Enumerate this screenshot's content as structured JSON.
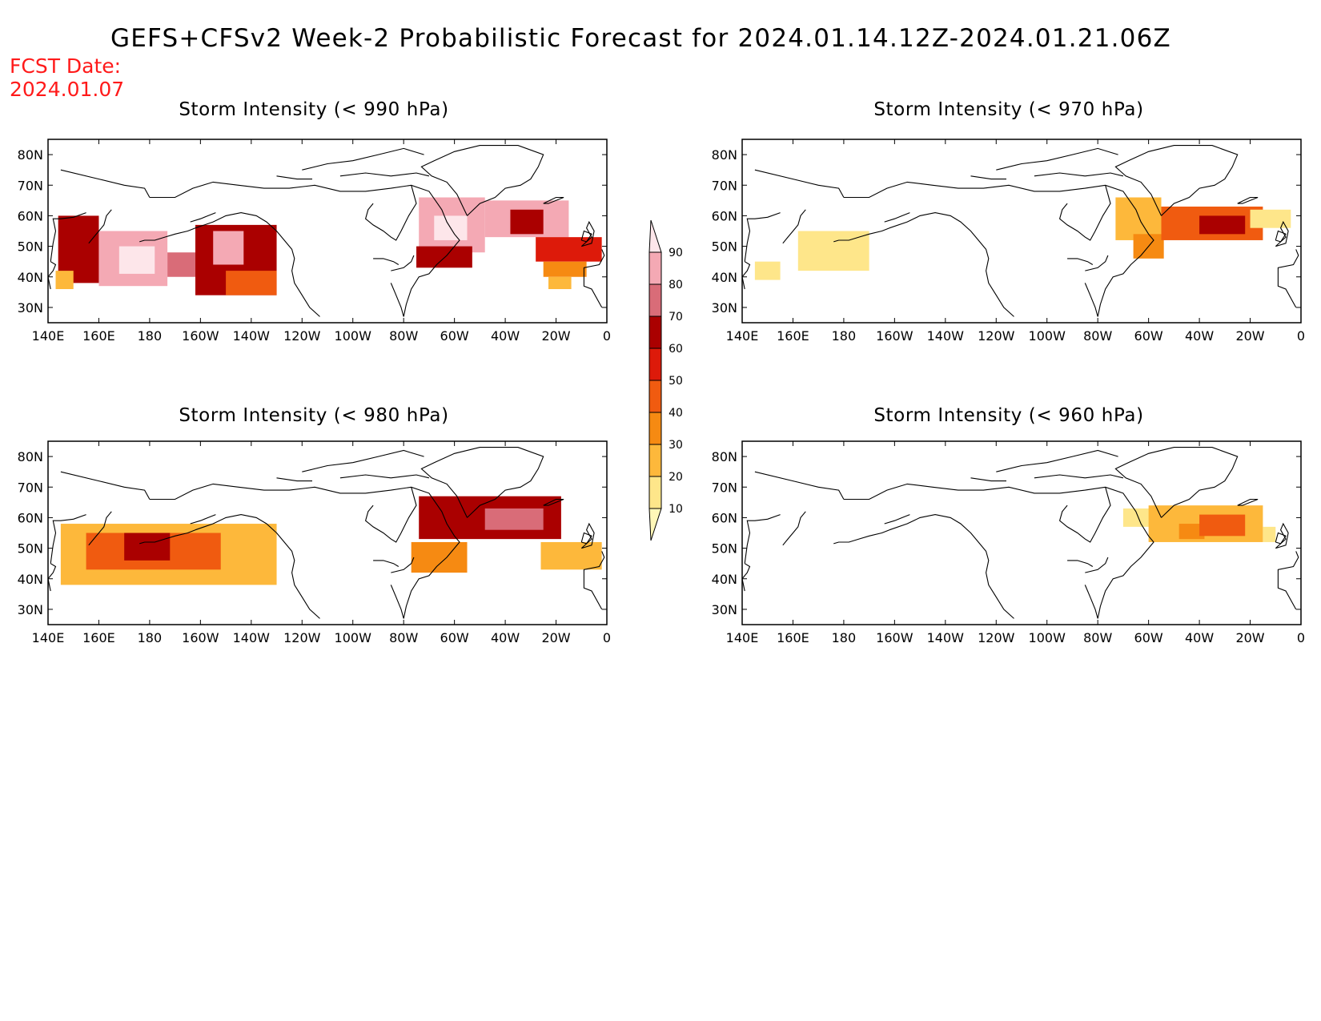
{
  "figure": {
    "title": "GEFS+CFSv2 Week-2 Probabilistic Forecast for 2024.01.14.12Z-2024.01.21.06Z",
    "fcst_label": "FCST Date:",
    "fcst_date": "2024.01.07"
  },
  "axes": {
    "x_tick_labels": [
      "140E",
      "160E",
      "180",
      "160W",
      "140W",
      "120W",
      "100W",
      "80W",
      "60W",
      "40W",
      "20W",
      "0"
    ],
    "x_tick_lons": [
      140,
      160,
      180,
      200,
      220,
      240,
      260,
      280,
      300,
      320,
      340,
      360
    ],
    "lon_range": [
      140,
      360
    ],
    "y_tick_labels": [
      "30N",
      "40N",
      "50N",
      "60N",
      "70N",
      "80N"
    ],
    "y_tick_lats": [
      30,
      40,
      50,
      60,
      70,
      80
    ],
    "lat_range": [
      25,
      85
    ]
  },
  "colorbar": {
    "levels": [
      10,
      20,
      30,
      40,
      50,
      60,
      70,
      80,
      90
    ],
    "colors": [
      "#fff7b8",
      "#fee68a",
      "#fdb83b",
      "#f68a12",
      "#f05b10",
      "#dd1a0a",
      "#aa0000",
      "#d96c78",
      "#f4a9b4",
      "#fde6ea"
    ]
  },
  "panels": [
    {
      "id": "990",
      "title": "Storm Intensity (< 990 hPa)",
      "regions": [
        {
          "lon": [
            144,
            160
          ],
          "lat": [
            38,
            60
          ],
          "value": 68
        },
        {
          "lon": [
            160,
            187
          ],
          "lat": [
            37,
            55
          ],
          "value": 82
        },
        {
          "lon": [
            168,
            182
          ],
          "lat": [
            41,
            50
          ],
          "value": 92
        },
        {
          "lon": [
            187,
            198
          ],
          "lat": [
            40,
            48
          ],
          "value": 72
        },
        {
          "lon": [
            198,
            230
          ],
          "lat": [
            34,
            57
          ],
          "value": 60
        },
        {
          "lon": [
            205,
            217
          ],
          "lat": [
            44,
            55
          ],
          "value": 82
        },
        {
          "lon": [
            210,
            230
          ],
          "lat": [
            34,
            42
          ],
          "value": 42
        },
        {
          "lon": [
            143,
            150
          ],
          "lat": [
            36,
            42
          ],
          "value": 22
        },
        {
          "lon": [
            286,
            312
          ],
          "lat": [
            48,
            66
          ],
          "value": 85
        },
        {
          "lon": [
            292,
            305
          ],
          "lat": [
            52,
            60
          ],
          "value": 95
        },
        {
          "lon": [
            312,
            345
          ],
          "lat": [
            53,
            65
          ],
          "value": 85
        },
        {
          "lon": [
            285,
            307
          ],
          "lat": [
            43,
            50
          ],
          "value": 62
        },
        {
          "lon": [
            322,
            335
          ],
          "lat": [
            54,
            62
          ],
          "value": 65
        },
        {
          "lon": [
            332,
            358
          ],
          "lat": [
            45,
            53
          ],
          "value": 58
        },
        {
          "lon": [
            335,
            352
          ],
          "lat": [
            40,
            45
          ],
          "value": 38
        },
        {
          "lon": [
            337,
            346
          ],
          "lat": [
            36,
            40
          ],
          "value": 20
        }
      ]
    },
    {
      "id": "970",
      "title": "Storm Intensity (< 970 hPa)",
      "regions": [
        {
          "lon": [
            162,
            190
          ],
          "lat": [
            42,
            55
          ],
          "value": 15
        },
        {
          "lon": [
            145,
            155
          ],
          "lat": [
            39,
            45
          ],
          "value": 12
        },
        {
          "lon": [
            287,
            305
          ],
          "lat": [
            52,
            66
          ],
          "value": 25
        },
        {
          "lon": [
            294,
            306
          ],
          "lat": [
            46,
            54
          ],
          "value": 38
        },
        {
          "lon": [
            305,
            345
          ],
          "lat": [
            52,
            63
          ],
          "value": 45
        },
        {
          "lon": [
            320,
            338
          ],
          "lat": [
            54,
            60
          ],
          "value": 62
        },
        {
          "lon": [
            340,
            356
          ],
          "lat": [
            56,
            62
          ],
          "value": 18
        }
      ]
    },
    {
      "id": "980",
      "title": "Storm Intensity (< 980 hPa)",
      "regions": [
        {
          "lon": [
            145,
            230
          ],
          "lat": [
            38,
            58
          ],
          "value": 22
        },
        {
          "lon": [
            155,
            208
          ],
          "lat": [
            43,
            55
          ],
          "value": 40
        },
        {
          "lon": [
            170,
            188
          ],
          "lat": [
            46,
            55
          ],
          "value": 62
        },
        {
          "lon": [
            286,
            342
          ],
          "lat": [
            53,
            67
          ],
          "value": 62
        },
        {
          "lon": [
            312,
            335
          ],
          "lat": [
            56,
            63
          ],
          "value": 78
        },
        {
          "lon": [
            283,
            305
          ],
          "lat": [
            42,
            52
          ],
          "value": 38
        },
        {
          "lon": [
            334,
            358
          ],
          "lat": [
            43,
            52
          ],
          "value": 25
        }
      ]
    },
    {
      "id": "960",
      "title": "Storm Intensity (< 960 hPa)",
      "regions": [
        {
          "lon": [
            290,
            305
          ],
          "lat": [
            57,
            63
          ],
          "value": 15
        },
        {
          "lon": [
            300,
            345
          ],
          "lat": [
            52,
            64
          ],
          "value": 22
        },
        {
          "lon": [
            312,
            322
          ],
          "lat": [
            53,
            58
          ],
          "value": 38
        },
        {
          "lon": [
            320,
            338
          ],
          "lat": [
            54,
            61
          ],
          "value": 42
        },
        {
          "lon": [
            345,
            350
          ],
          "lat": [
            52,
            57
          ],
          "value": 15
        }
      ]
    }
  ]
}
